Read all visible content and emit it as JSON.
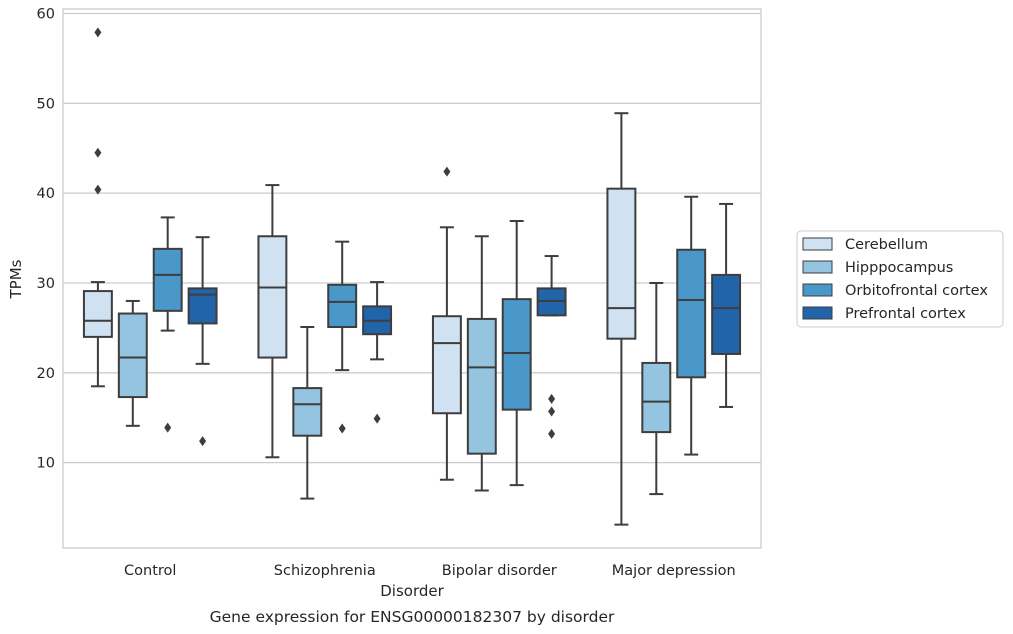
{
  "chart_data": {
    "type": "boxplot",
    "title": "Gene expression for ENSG00000182307 by disorder",
    "xlabel": "Disorder",
    "ylabel": "TPMs",
    "ylim": [
      0.5,
      60.5
    ],
    "yticks": [
      10,
      20,
      30,
      40,
      50,
      60
    ],
    "grid": "horizontal",
    "legend_position": "right",
    "categories": [
      "Control",
      "Schizophrenia",
      "Bipolar disorder",
      "Major depression"
    ],
    "series": [
      {
        "name": "Cerebellum",
        "color": "#d0e1f2",
        "boxes": [
          {
            "whislo": 18.5,
            "q1": 24.0,
            "median": 25.8,
            "q3": 29.1,
            "whishi": 30.1,
            "fliers": [
              57.9,
              44.5,
              40.4
            ]
          },
          {
            "whislo": 10.6,
            "q1": 21.7,
            "median": 29.5,
            "q3": 35.2,
            "whishi": 40.9,
            "fliers": []
          },
          {
            "whislo": 8.1,
            "q1": 15.5,
            "median": 23.3,
            "q3": 26.3,
            "whishi": 36.2,
            "fliers": [
              42.4
            ]
          },
          {
            "whislo": 3.1,
            "q1": 23.8,
            "median": 27.2,
            "q3": 40.5,
            "whishi": 48.9,
            "fliers": []
          }
        ]
      },
      {
        "name": "Hipppocampus",
        "color": "#94c4df",
        "boxes": [
          {
            "whislo": 14.1,
            "q1": 17.3,
            "median": 21.7,
            "q3": 26.6,
            "whishi": 28.0,
            "fliers": []
          },
          {
            "whislo": 6.0,
            "q1": 13.0,
            "median": 16.5,
            "q3": 18.3,
            "whishi": 25.1,
            "fliers": []
          },
          {
            "whislo": 6.9,
            "q1": 11.0,
            "median": 20.6,
            "q3": 26.0,
            "whishi": 35.2,
            "fliers": []
          },
          {
            "whislo": 6.5,
            "q1": 13.4,
            "median": 16.8,
            "q3": 21.1,
            "whishi": 30.0,
            "fliers": []
          }
        ]
      },
      {
        "name": "Orbitofrontal cortex",
        "color": "#4a98c9",
        "boxes": [
          {
            "whislo": 24.7,
            "q1": 26.9,
            "median": 30.9,
            "q3": 33.8,
            "whishi": 37.3,
            "fliers": [
              13.9
            ]
          },
          {
            "whislo": 20.3,
            "q1": 25.1,
            "median": 27.9,
            "q3": 29.8,
            "whishi": 34.6,
            "fliers": [
              13.8
            ]
          },
          {
            "whislo": 7.5,
            "q1": 15.9,
            "median": 22.2,
            "q3": 28.2,
            "whishi": 36.9,
            "fliers": []
          },
          {
            "whislo": 10.9,
            "q1": 19.5,
            "median": 28.1,
            "q3": 33.7,
            "whishi": 39.6,
            "fliers": []
          }
        ]
      },
      {
        "name": "Prefrontal cortex",
        "color": "#2264aa",
        "boxes": [
          {
            "whislo": 21.0,
            "q1": 25.5,
            "median": 28.7,
            "q3": 29.4,
            "whishi": 35.1,
            "fliers": [
              12.4
            ]
          },
          {
            "whislo": 21.5,
            "q1": 24.3,
            "median": 25.8,
            "q3": 27.4,
            "whishi": 30.1,
            "fliers": [
              14.9
            ]
          },
          {
            "whislo": 26.4,
            "q1": 26.4,
            "median": 28.0,
            "q3": 29.4,
            "whishi": 33.0,
            "fliers": [
              17.1,
              15.7,
              13.2
            ]
          },
          {
            "whislo": 16.2,
            "q1": 22.1,
            "median": 27.2,
            "q3": 30.9,
            "whishi": 38.8,
            "fliers": []
          }
        ]
      }
    ]
  }
}
